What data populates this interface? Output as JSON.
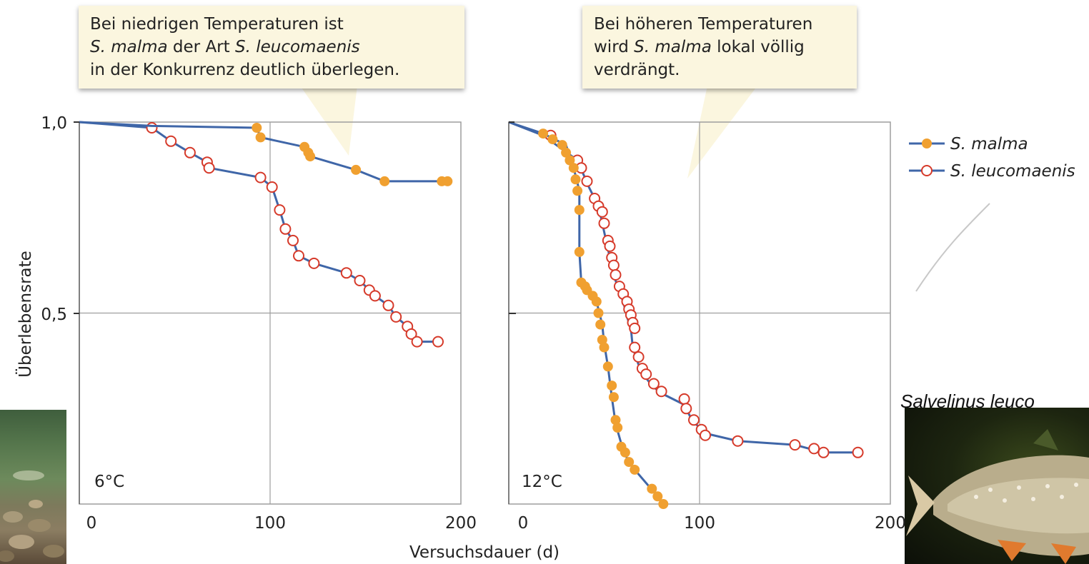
{
  "callouts": {
    "left": {
      "line1": "Bei niedrigen Temperaturen ist",
      "line2_italic": "S. malma",
      "line2_rest": " der Art ",
      "line2_italic2": "S. leucomaenis",
      "line3": "in der Konkurrenz deutlich überlegen."
    },
    "right": {
      "line1": "Bei höheren Temperaturen",
      "line2_pre": "wird ",
      "line2_italic": "S. malma",
      "line2_rest": " lokal völlig",
      "line3": "verdrängt."
    }
  },
  "fish_caption": "Salvelinus leuco",
  "chart_data": [
    {
      "type": "line",
      "panel_label": "6°C",
      "ylabel": "Überlebensrate",
      "xlabel": "Versuchsdauer (d)",
      "xlim": [
        0,
        200
      ],
      "ylim": [
        0,
        1.0
      ],
      "x_ticks": [
        "0",
        "100",
        "200"
      ],
      "y_ticks": [
        "1,0",
        "0,5"
      ],
      "grid": true,
      "series": [
        {
          "name": "S. malma",
          "marker": "filled",
          "color": "#f0a030",
          "line": [
            [
              0,
              1.0
            ],
            [
              38,
              0.99
            ],
            [
              93,
              0.985
            ],
            [
              95,
              0.96
            ],
            [
              118,
              0.935
            ],
            [
              121,
              0.91
            ],
            [
              145,
              0.875
            ],
            [
              160,
              0.845
            ],
            [
              190,
              0.845
            ],
            [
              193,
              0.845
            ]
          ],
          "points": [
            [
              93,
              0.985
            ],
            [
              95,
              0.96
            ],
            [
              118,
              0.935
            ],
            [
              120,
              0.92
            ],
            [
              121,
              0.91
            ],
            [
              145,
              0.875
            ],
            [
              160,
              0.845
            ],
            [
              190,
              0.845
            ],
            [
              193,
              0.845
            ]
          ]
        },
        {
          "name": "S. leucomaenis",
          "marker": "open",
          "color": "#d63a2a",
          "line": [
            [
              0,
              1.0
            ],
            [
              38,
              0.985
            ],
            [
              48,
              0.95
            ],
            [
              58,
              0.92
            ],
            [
              67,
              0.895
            ],
            [
              68,
              0.88
            ],
            [
              95,
              0.855
            ],
            [
              101,
              0.83
            ],
            [
              105,
              0.77
            ],
            [
              108,
              0.72
            ],
            [
              112,
              0.69
            ],
            [
              115,
              0.65
            ],
            [
              123,
              0.63
            ],
            [
              140,
              0.605
            ],
            [
              147,
              0.585
            ],
            [
              152,
              0.56
            ],
            [
              155,
              0.545
            ],
            [
              162,
              0.52
            ],
            [
              166,
              0.49
            ],
            [
              172,
              0.465
            ],
            [
              174,
              0.445
            ],
            [
              177,
              0.425
            ],
            [
              188,
              0.425
            ]
          ],
          "points": [
            [
              38,
              0.985
            ],
            [
              48,
              0.95
            ],
            [
              58,
              0.92
            ],
            [
              67,
              0.895
            ],
            [
              68,
              0.88
            ],
            [
              95,
              0.855
            ],
            [
              101,
              0.83
            ],
            [
              105,
              0.77
            ],
            [
              108,
              0.72
            ],
            [
              112,
              0.69
            ],
            [
              115,
              0.65
            ],
            [
              123,
              0.63
            ],
            [
              140,
              0.605
            ],
            [
              147,
              0.585
            ],
            [
              152,
              0.56
            ],
            [
              155,
              0.545
            ],
            [
              162,
              0.52
            ],
            [
              166,
              0.49
            ],
            [
              172,
              0.465
            ],
            [
              174,
              0.445
            ],
            [
              177,
              0.425
            ],
            [
              188,
              0.425
            ]
          ]
        }
      ]
    },
    {
      "type": "line",
      "panel_label": "12°C",
      "xlabel": "Versuchsdauer (d)",
      "xlim": [
        0,
        200
      ],
      "ylim": [
        0,
        1.0
      ],
      "x_ticks": [
        "0",
        "100",
        "200"
      ],
      "grid": true,
      "series": [
        {
          "name": "S. malma",
          "marker": "filled",
          "color": "#f0a030",
          "line": [
            [
              0,
              1.0
            ],
            [
              18,
              0.97
            ],
            [
              30,
              0.94
            ],
            [
              34,
              0.88
            ],
            [
              37,
              0.82
            ],
            [
              37,
              0.66
            ],
            [
              38,
              0.58
            ],
            [
              41,
              0.56
            ],
            [
              46,
              0.53
            ],
            [
              49,
              0.47
            ],
            [
              50,
              0.42
            ],
            [
              52,
              0.36
            ],
            [
              54,
              0.28
            ],
            [
              56,
              0.21
            ],
            [
              60,
              0.14
            ],
            [
              62,
              0.12
            ],
            [
              66,
              0.09
            ],
            [
              78,
              0.02
            ],
            [
              82,
              -0.01
            ]
          ],
          "points": [
            [
              18,
              0.97
            ],
            [
              23,
              0.955
            ],
            [
              28,
              0.94
            ],
            [
              30,
              0.92
            ],
            [
              32,
              0.9
            ],
            [
              34,
              0.88
            ],
            [
              35,
              0.85
            ],
            [
              36,
              0.82
            ],
            [
              37,
              0.77
            ],
            [
              37,
              0.66
            ],
            [
              38,
              0.58
            ],
            [
              40,
              0.57
            ],
            [
              41,
              0.56
            ],
            [
              44,
              0.545
            ],
            [
              46,
              0.53
            ],
            [
              47,
              0.5
            ],
            [
              48,
              0.47
            ],
            [
              49,
              0.43
            ],
            [
              50,
              0.41
            ],
            [
              52,
              0.36
            ],
            [
              54,
              0.31
            ],
            [
              55,
              0.28
            ],
            [
              56,
              0.22
            ],
            [
              57,
              0.2
            ],
            [
              59,
              0.15
            ],
            [
              61,
              0.135
            ],
            [
              63,
              0.11
            ],
            [
              66,
              0.09
            ],
            [
              75,
              0.04
            ],
            [
              78,
              0.02
            ],
            [
              81,
              0.0
            ]
          ]
        },
        {
          "name": "S. leucomaenis",
          "marker": "open",
          "color": "#d63a2a",
          "line": [
            [
              0,
              1.0
            ],
            [
              18,
              0.965
            ],
            [
              36,
              0.9
            ],
            [
              42,
              0.83
            ],
            [
              47,
              0.78
            ],
            [
              51,
              0.69
            ],
            [
              53,
              0.645
            ],
            [
              55,
              0.6
            ],
            [
              57,
              0.57
            ],
            [
              60,
              0.53
            ],
            [
              62,
              0.49
            ],
            [
              64,
              0.46
            ],
            [
              65,
              0.41
            ],
            [
              68,
              0.365
            ],
            [
              72,
              0.33
            ],
            [
              75,
              0.31
            ],
            [
              80,
              0.29
            ],
            [
              92,
              0.26
            ],
            [
              96,
              0.22
            ],
            [
              103,
              0.185
            ],
            [
              120,
              0.165
            ],
            [
              150,
              0.155
            ],
            [
              165,
              0.135
            ],
            [
              183,
              0.135
            ]
          ],
          "points": [
            [
              22,
              0.965
            ],
            [
              36,
              0.9
            ],
            [
              38,
              0.88
            ],
            [
              41,
              0.845
            ],
            [
              45,
              0.8
            ],
            [
              47,
              0.78
            ],
            [
              49,
              0.765
            ],
            [
              50,
              0.735
            ],
            [
              52,
              0.69
            ],
            [
              53,
              0.675
            ],
            [
              54,
              0.645
            ],
            [
              55,
              0.625
            ],
            [
              56,
              0.6
            ],
            [
              58,
              0.57
            ],
            [
              60,
              0.55
            ],
            [
              62,
              0.53
            ],
            [
              63,
              0.51
            ],
            [
              64,
              0.495
            ],
            [
              65,
              0.475
            ],
            [
              66,
              0.46
            ],
            [
              66,
              0.41
            ],
            [
              68,
              0.385
            ],
            [
              70,
              0.355
            ],
            [
              72,
              0.34
            ],
            [
              76,
              0.315
            ],
            [
              80,
              0.295
            ],
            [
              92,
              0.275
            ],
            [
              93,
              0.25
            ],
            [
              97,
              0.22
            ],
            [
              101,
              0.195
            ],
            [
              103,
              0.18
            ],
            [
              120,
              0.165
            ],
            [
              150,
              0.155
            ],
            [
              160,
              0.145
            ],
            [
              165,
              0.135
            ],
            [
              183,
              0.135
            ]
          ]
        }
      ]
    }
  ],
  "legend": {
    "entries": [
      {
        "name": "S. malma",
        "marker": "filled"
      },
      {
        "name": "S. leucomaenis",
        "marker": "open"
      }
    ],
    "placement": "right"
  },
  "colors": {
    "line": "#3f66a8",
    "malma": "#f0a030",
    "leucomaenis": "#d63a2a",
    "grid": "#9e9e9e",
    "callout_bg": "#fbf6df"
  }
}
